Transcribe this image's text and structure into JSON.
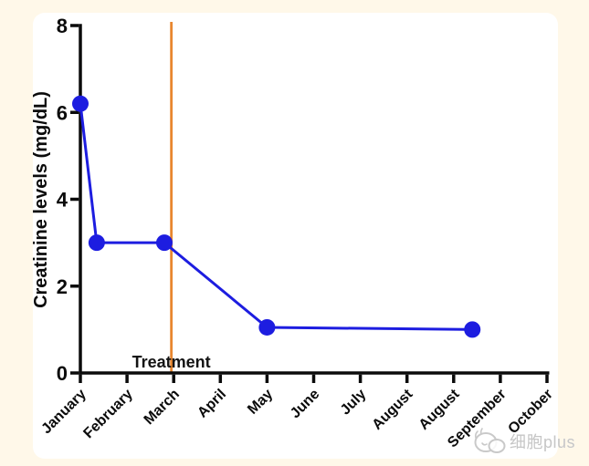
{
  "page": {
    "background_color": "#FFF8E9",
    "card_color": "#FFFFFF"
  },
  "watermark": {
    "text": "细胞plus",
    "icon": "cell-logo-icon",
    "color": "#c6c6c6"
  },
  "chart_data": {
    "type": "line",
    "title": "",
    "xlabel": "",
    "ylabel": "Creatinine levels (mg/dL)",
    "ylim": [
      0,
      8
    ],
    "yticks": [
      0,
      2,
      4,
      6,
      8
    ],
    "categories": [
      "January",
      "February",
      "March",
      "April",
      "May",
      "June",
      "July",
      "August",
      "August",
      "September",
      "October"
    ],
    "x_tick_rotation_deg": 45,
    "grid": false,
    "legend_position": "none",
    "axis_color": "#0b0b0b",
    "series": [
      {
        "name": "Creatinine",
        "color": "#1d1de0",
        "marker": "circle",
        "points": [
          {
            "x": 0,
            "y": 6.2
          },
          {
            "x": 0.35,
            "y": 3.0
          },
          {
            "x": 1.8,
            "y": 3.0
          },
          {
            "x": 4.0,
            "y": 1.05
          },
          {
            "x": 8.4,
            "y": 1.0
          }
        ]
      }
    ],
    "annotations": {
      "treatment_line": {
        "x": 1.95,
        "color": "#E8872F",
        "label": "Treatment"
      }
    }
  }
}
